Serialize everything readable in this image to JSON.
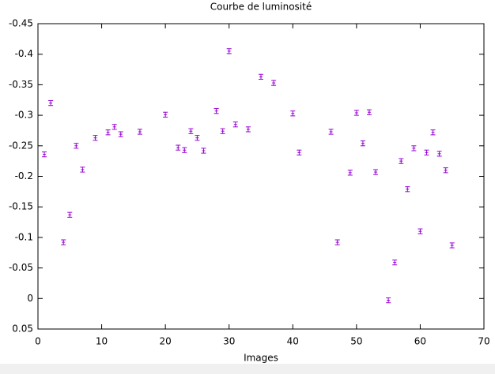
{
  "chart_data": {
    "type": "scatter",
    "title": "Courbe de luminosité",
    "x_label": "Images",
    "x": [
      1,
      2,
      4,
      5,
      6,
      7,
      9,
      11,
      12,
      13,
      16,
      20,
      22,
      23,
      24,
      25,
      26,
      28,
      29,
      30,
      31,
      33,
      35,
      37,
      40,
      41,
      46,
      47,
      49,
      50,
      51,
      52,
      53,
      55,
      56,
      57,
      58,
      59,
      60,
      61,
      62,
      63,
      64,
      65
    ],
    "series": [
      {
        "color": "#9400d3",
        "values": [
          -0.236,
          -0.32,
          -0.092,
          -0.137,
          -0.25,
          -0.211,
          -0.263,
          -0.272,
          -0.281,
          -0.269,
          -0.273,
          -0.301,
          -0.247,
          -0.243,
          -0.274,
          -0.263,
          -0.242,
          -0.307,
          -0.274,
          -0.405,
          -0.285,
          -0.277,
          -0.363,
          -0.353,
          -0.303,
          -0.239,
          -0.273,
          -0.092,
          -0.206,
          -0.304,
          -0.254,
          -0.305,
          -0.207,
          0.003,
          -0.059,
          -0.225,
          -0.179,
          -0.246,
          -0.11,
          -0.239,
          -0.272,
          -0.237,
          -0.21,
          -0.087
        ],
        "errors": [
          0.004,
          0.004,
          0.004,
          0.004,
          0.004,
          0.004,
          0.004,
          0.004,
          0.004,
          0.004,
          0.004,
          0.004,
          0.004,
          0.004,
          0.004,
          0.004,
          0.004,
          0.004,
          0.004,
          0.004,
          0.004,
          0.004,
          0.004,
          0.004,
          0.004,
          0.004,
          0.004,
          0.004,
          0.004,
          0.004,
          0.004,
          0.004,
          0.004,
          0.004,
          0.004,
          0.004,
          0.004,
          0.004,
          0.004,
          0.004,
          0.004,
          0.004,
          0.004,
          0.004
        ]
      }
    ],
    "xlim": [
      0,
      70
    ],
    "xticks": [
      0,
      10,
      20,
      30,
      40,
      50,
      60,
      70
    ],
    "ylim": [
      0.05,
      -0.45
    ],
    "yticks": [
      0.05,
      0,
      -0.05,
      -0.1,
      -0.15,
      -0.2,
      -0.25,
      -0.3,
      -0.35,
      -0.4,
      -0.45
    ]
  }
}
